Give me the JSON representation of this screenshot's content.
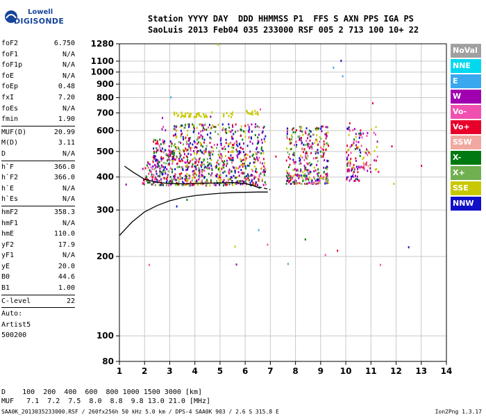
{
  "logo": {
    "line1": "Lowell",
    "line2": "DIGISONDE"
  },
  "header": {
    "line1": "Station YYYY DAY  DDD HHMMSS P1  FFS S AXN PPS IGA PS",
    "line2": "SaoLuis 2013 Feb04 035 233000 RSF 005 2 713 100 10+ 22"
  },
  "params": [
    {
      "k": "foF2",
      "v": "6.750"
    },
    {
      "k": "foF1",
      "v": "N/A"
    },
    {
      "k": "foF1p",
      "v": "N/A"
    },
    {
      "k": "foE",
      "v": "N/A"
    },
    {
      "k": "foEp",
      "v": "0.48"
    },
    {
      "k": "fxI",
      "v": "7.20"
    },
    {
      "k": "foEs",
      "v": "N/A"
    },
    {
      "k": "fmin",
      "v": "1.90"
    },
    {
      "sep": true
    },
    {
      "k": "MUF(D)",
      "v": "20.99"
    },
    {
      "k": "M(D)",
      "v": "3.11"
    },
    {
      "k": "D",
      "v": "N/A"
    },
    {
      "sep": true
    },
    {
      "k": "h`F",
      "v": "366.0"
    },
    {
      "k": "h`F2",
      "v": "366.0"
    },
    {
      "k": "h`E",
      "v": "N/A"
    },
    {
      "k": "h`Es",
      "v": "N/A"
    },
    {
      "sep": true
    },
    {
      "k": "hmF2",
      "v": "358.3"
    },
    {
      "k": "hmF1",
      "v": "N/A"
    },
    {
      "k": "hmE",
      "v": "110.0"
    },
    {
      "k": "yF2",
      "v": "17.9"
    },
    {
      "k": "yF1",
      "v": "N/A"
    },
    {
      "k": "yE",
      "v": "20.0"
    },
    {
      "k": "B0",
      "v": "44.6"
    },
    {
      "k": "B1",
      "v": "1.00"
    },
    {
      "sep": true
    },
    {
      "k": "C-level",
      "v": "22"
    },
    {
      "sep": true
    },
    {
      "k": "Auto:",
      "v": ""
    },
    {
      "k": "Artist5",
      "v": ""
    },
    {
      "k": "500200",
      "v": ""
    }
  ],
  "legend": [
    {
      "label": "NoVal",
      "color": "#a0a0a0"
    },
    {
      "label": "NNE",
      "color": "#00d8f0"
    },
    {
      "label": "E",
      "color": "#3aa8ee"
    },
    {
      "label": "W",
      "color": "#a000b0"
    },
    {
      "label": "Vo-",
      "color": "#f050b0"
    },
    {
      "label": "Vo+",
      "color": "#e8002a"
    },
    {
      "label": "SSW",
      "color": "#f0a8a0"
    },
    {
      "label": "X-",
      "color": "#007a10"
    },
    {
      "label": "X+",
      "color": "#70b050"
    },
    {
      "label": "SSE",
      "color": "#c8c800"
    },
    {
      "label": "NNW",
      "color": "#1010c8"
    }
  ],
  "bottom": {
    "line1": "D    100  200  400  600  800 1000 1500 3000 [km]",
    "line2": "MUF   7.1  7.2  7.5  8.0  8.8  9.8 13.0 21.0 [MHz]"
  },
  "footer": {
    "left": "SAA0K_2013035233000.RSF / 260fx256h 50 kHz 5.0 km / DPS-4 SAA0K 903 / 2.6 S 315.8 E",
    "right": "Ion2Png 1.3.17"
  },
  "chart_data": {
    "type": "scatter",
    "title": "",
    "xlabel": "",
    "ylabel": "",
    "xlim": [
      1,
      14
    ],
    "ylim": [
      80,
      1280
    ],
    "yscale": "log",
    "x_ticks": [
      1,
      2,
      3,
      4,
      5,
      6,
      7,
      8,
      9,
      10,
      11,
      12,
      13,
      14
    ],
    "y_ticks": [
      80,
      100,
      200,
      300,
      400,
      500,
      600,
      700,
      800,
      900,
      1000,
      1100,
      1280
    ],
    "grid": true,
    "clusters": [
      {
        "x": [
          1.9,
          2.3
        ],
        "y": [
          375,
          460
        ],
        "colors": [
          "#e8002a",
          "#007a10",
          "#a000b0",
          "#f050b0"
        ],
        "n": 40
      },
      {
        "x": [
          2.3,
          3.1
        ],
        "y": [
          375,
          560
        ],
        "colors": [
          "#e8002a",
          "#007a10",
          "#a000b0",
          "#f050b0",
          "#70b050",
          "#1010c8"
        ],
        "n": 160
      },
      {
        "x": [
          3.1,
          5.0
        ],
        "y": [
          375,
          640
        ],
        "colors": [
          "#e8002a",
          "#007a10",
          "#a000b0",
          "#f050b0",
          "#70b050",
          "#1010c8",
          "#c8c800"
        ],
        "n": 420
      },
      {
        "x": [
          5.0,
          6.8
        ],
        "y": [
          375,
          640
        ],
        "colors": [
          "#c8c800",
          "#a000b0",
          "#007a10",
          "#e8002a",
          "#f050b0",
          "#1010c8"
        ],
        "n": 320
      },
      {
        "x": [
          7.6,
          9.3
        ],
        "y": [
          380,
          630
        ],
        "colors": [
          "#c8c800",
          "#a000b0",
          "#e8002a",
          "#f050b0",
          "#007a10",
          "#1010c8",
          "#70b050"
        ],
        "n": 330
      },
      {
        "x": [
          10.0,
          10.6
        ],
        "y": [
          390,
          650
        ],
        "colors": [
          "#e8002a",
          "#a000b0",
          "#f050b0",
          "#c8c800",
          "#007a10",
          "#1010c8"
        ],
        "n": 90
      },
      {
        "x": [
          10.6,
          11.3
        ],
        "y": [
          420,
          640
        ],
        "colors": [
          "#a000b0",
          "#c8c800",
          "#f050b0",
          "#e8002a"
        ],
        "n": 40
      },
      {
        "x": [
          3.1,
          4.7
        ],
        "y": [
          680,
          710
        ],
        "colors": [
          "#c8c800"
        ],
        "n": 40
      },
      {
        "x": [
          5.1,
          5.5
        ],
        "y": [
          675,
          710
        ],
        "colors": [
          "#c8c800"
        ],
        "n": 10
      },
      {
        "x": [
          6.0,
          6.5
        ],
        "y": [
          695,
          720
        ],
        "colors": [
          "#c8c800"
        ],
        "n": 15
      },
      {
        "x": [
          2.3,
          3.1
        ],
        "y": [
          460,
          680
        ],
        "colors": [
          "#e8002a",
          "#a000b0",
          "#f050b0"
        ],
        "n": 25
      },
      {
        "x": [
          1.2,
          13.6
        ],
        "y": [
          180,
          1280
        ],
        "colors": [
          "#a000b0",
          "#e8002a",
          "#f050b0",
          "#007a10",
          "#1010c8",
          "#3aa8ee",
          "#c8c800"
        ],
        "n": 35
      }
    ],
    "curves": [
      {
        "name": "",
        "style": "solid",
        "x": [
          1.0,
          1.5,
          2.0,
          2.5,
          3.0,
          3.5,
          4.0,
          4.5,
          5.0,
          5.5,
          6.0,
          6.5,
          6.9
        ],
        "y": [
          240,
          270,
          295,
          312,
          325,
          334,
          340,
          344,
          347,
          349,
          350,
          351,
          351
        ]
      },
      {
        "name": "",
        "style": "solid",
        "x": [
          1.2,
          1.5,
          2.0,
          2.5,
          3.0,
          3.5,
          4.0,
          4.5,
          5.0,
          5.5,
          6.0,
          6.3,
          6.6
        ],
        "y": [
          440,
          420,
          392,
          382,
          378,
          377,
          378,
          379,
          380,
          381,
          378,
          372,
          362
        ]
      },
      {
        "name": "",
        "style": "dashed",
        "x": [
          6.1,
          6.4,
          6.7,
          7.0
        ],
        "y": [
          376,
          370,
          364,
          358
        ]
      }
    ]
  }
}
